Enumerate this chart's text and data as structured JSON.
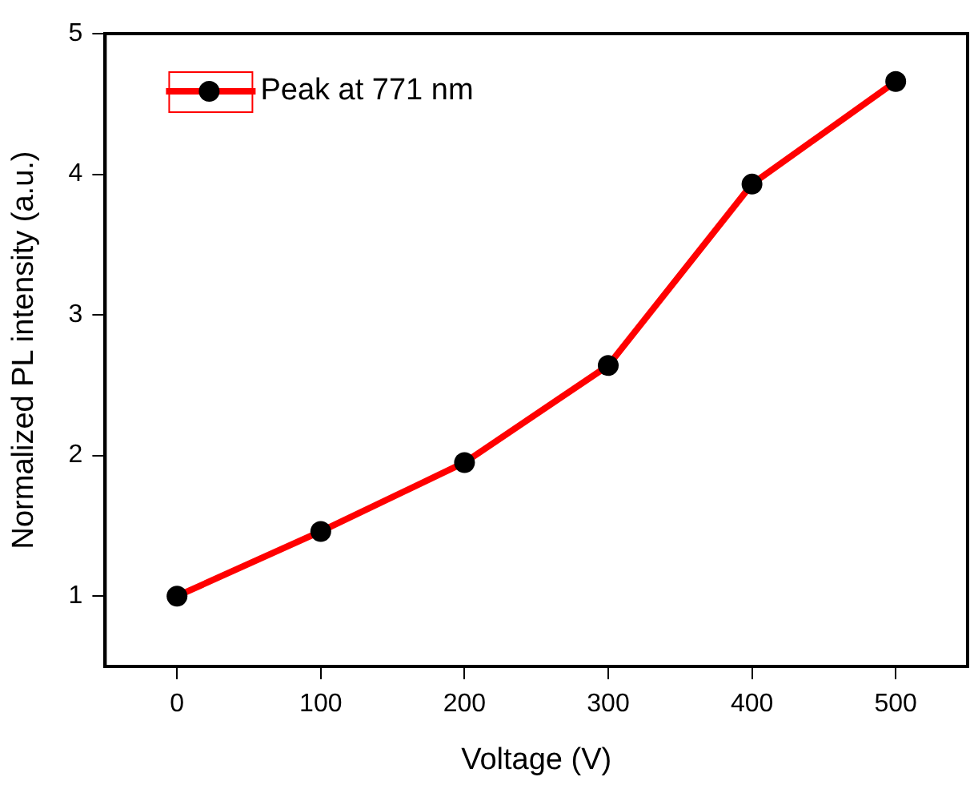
{
  "chart_data": {
    "type": "line",
    "xlabel": "Voltage (V)",
    "ylabel": "Normalized PL intensity (a.u.)",
    "x": [
      0,
      100,
      200,
      300,
      400,
      500
    ],
    "series": [
      {
        "name": "Peak at 771 nm",
        "color": "#ff0000",
        "values": [
          1.0,
          1.46,
          1.95,
          2.64,
          3.93,
          4.66
        ]
      }
    ],
    "xlim": [
      -50,
      550
    ],
    "xticks": [
      0,
      100,
      200,
      300,
      400,
      500
    ],
    "ylim": [
      0.5,
      5
    ],
    "yticks": [
      1,
      2,
      3,
      4,
      5
    ],
    "grid": false,
    "legend": "top left",
    "marker": "circle",
    "line_style": "solid"
  }
}
